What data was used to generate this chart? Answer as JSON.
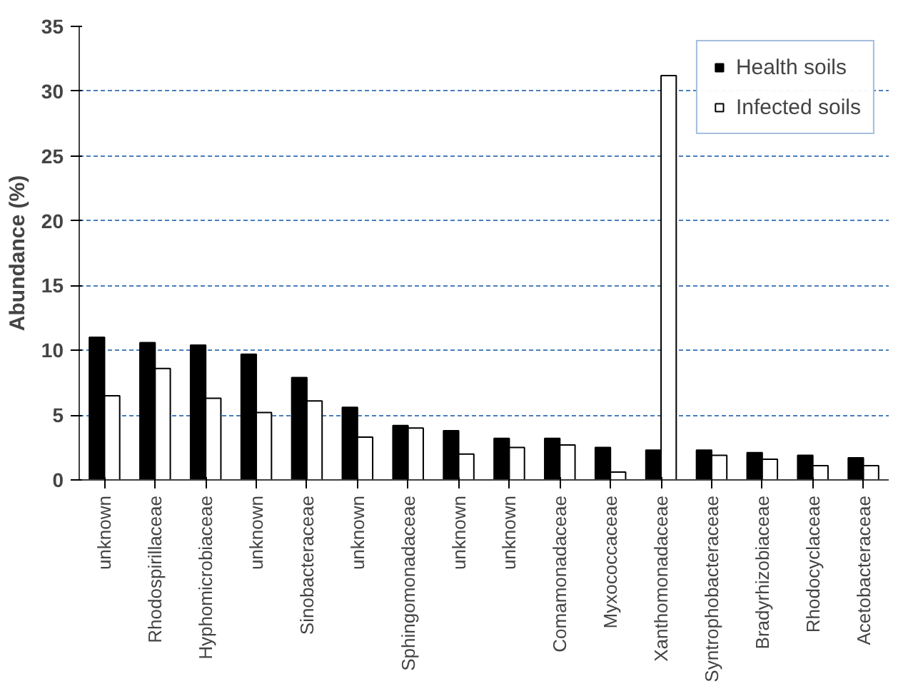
{
  "chart_data": {
    "type": "bar",
    "ylabel": "Abundance (%)",
    "categories": [
      "unknown",
      "Rhodospirillaceae",
      "Hyphomicrobiaceae",
      "unknown",
      "Sinobacteraceae",
      "unknown",
      "Sphingomonadaceae",
      "unknown",
      "unknown",
      "Comamonadaceae",
      "Myxococcaceae",
      "Xanthomonadaceae",
      "Syntrophobacteraceae",
      "Bradyrhizobiaceae",
      "Rhodocyclaceae",
      "Acetobacteraceae"
    ],
    "series": [
      {
        "name": "Health soils",
        "color": "#000000",
        "values": [
          11.0,
          10.6,
          10.4,
          9.7,
          7.9,
          5.6,
          4.2,
          3.8,
          3.2,
          3.2,
          2.5,
          2.3,
          2.3,
          2.1,
          1.9,
          1.7
        ]
      },
      {
        "name": "Infected soils",
        "color": "#ffffff",
        "values": [
          6.5,
          8.6,
          6.3,
          5.2,
          6.1,
          3.3,
          4.0,
          2.0,
          2.5,
          2.7,
          0.6,
          31.2,
          1.9,
          1.6,
          1.1,
          1.1
        ]
      }
    ],
    "ylim": [
      0,
      35
    ],
    "yticks": [
      0,
      5,
      10,
      15,
      20,
      25,
      30,
      35
    ],
    "grid": "y",
    "legend": "top right"
  }
}
